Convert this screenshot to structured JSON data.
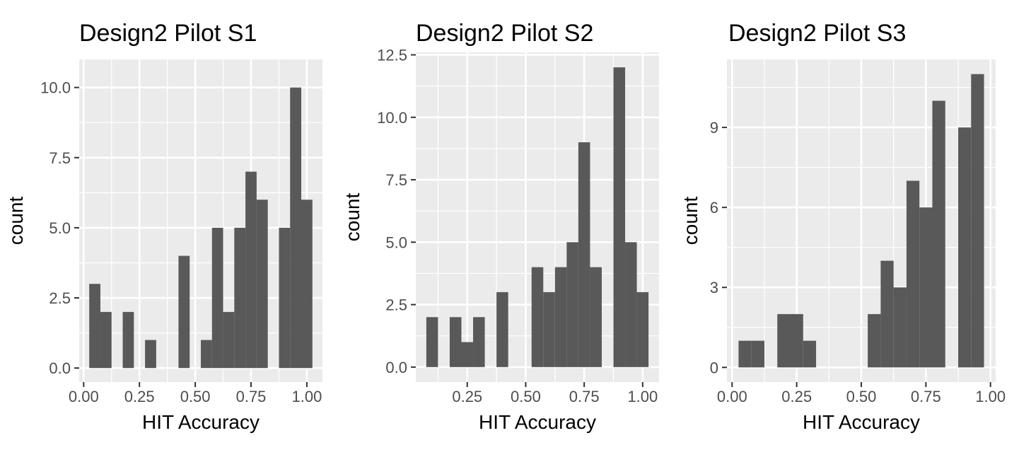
{
  "chart_data": [
    {
      "type": "bar",
      "title": "Design2 Pilot S1",
      "xlabel": "HIT Accuracy",
      "ylabel": "count",
      "xlim": [
        -0.02,
        1.07
      ],
      "ylim": [
        -0.5,
        11.0
      ],
      "xticks": [
        0.0,
        0.25,
        0.5,
        0.75,
        1.0
      ],
      "xtick_labels": [
        "0.00",
        "0.25",
        "0.50",
        "0.75",
        "1.00"
      ],
      "yticks": [
        0.0,
        2.5,
        5.0,
        7.5,
        10.0
      ],
      "ytick_labels": [
        "0.0",
        "2.5",
        "5.0",
        "7.5",
        "10.0"
      ],
      "bin_width": 0.05,
      "bins": [
        {
          "x": 0.05,
          "count": 3
        },
        {
          "x": 0.1,
          "count": 2
        },
        {
          "x": 0.2,
          "count": 2
        },
        {
          "x": 0.3,
          "count": 1
        },
        {
          "x": 0.45,
          "count": 4
        },
        {
          "x": 0.55,
          "count": 1
        },
        {
          "x": 0.6,
          "count": 5
        },
        {
          "x": 0.65,
          "count": 2
        },
        {
          "x": 0.7,
          "count": 5
        },
        {
          "x": 0.75,
          "count": 7
        },
        {
          "x": 0.8,
          "count": 6
        },
        {
          "x": 0.9,
          "count": 5
        },
        {
          "x": 0.95,
          "count": 10
        },
        {
          "x": 1.0,
          "count": 6
        }
      ],
      "grid": true
    },
    {
      "type": "bar",
      "title": "Design2 Pilot S2",
      "xlabel": "HIT Accuracy",
      "ylabel": "count",
      "xlim": [
        0.03,
        1.07
      ],
      "ylim": [
        -0.6,
        12.6
      ],
      "xticks": [
        0.25,
        0.5,
        0.75,
        1.0
      ],
      "xtick_labels": [
        "0.25",
        "0.50",
        "0.75",
        "1.00"
      ],
      "yticks": [
        0.0,
        2.5,
        5.0,
        7.5,
        10.0,
        12.5
      ],
      "ytick_labels": [
        "0.0",
        "2.5",
        "5.0",
        "7.5",
        "10.0",
        "12.5"
      ],
      "bin_width": 0.05,
      "bins": [
        {
          "x": 0.1,
          "count": 2
        },
        {
          "x": 0.2,
          "count": 2
        },
        {
          "x": 0.25,
          "count": 1
        },
        {
          "x": 0.3,
          "count": 2
        },
        {
          "x": 0.4,
          "count": 3
        },
        {
          "x": 0.55,
          "count": 4
        },
        {
          "x": 0.6,
          "count": 3
        },
        {
          "x": 0.65,
          "count": 4
        },
        {
          "x": 0.7,
          "count": 5
        },
        {
          "x": 0.75,
          "count": 9
        },
        {
          "x": 0.8,
          "count": 4
        },
        {
          "x": 0.9,
          "count": 12
        },
        {
          "x": 0.95,
          "count": 5
        },
        {
          "x": 1.0,
          "count": 3
        }
      ],
      "grid": true
    },
    {
      "type": "bar",
      "title": "Design2 Pilot S3",
      "xlabel": "HIT Accuracy",
      "ylabel": "count",
      "xlim": [
        -0.02,
        1.02
      ],
      "ylim": [
        -0.55,
        11.55
      ],
      "xticks": [
        0.0,
        0.25,
        0.5,
        0.75,
        1.0
      ],
      "xtick_labels": [
        "0.00",
        "0.25",
        "0.50",
        "0.75",
        "1.00"
      ],
      "yticks": [
        0,
        3,
        6,
        9
      ],
      "ytick_labels": [
        "0",
        "3",
        "6",
        "9"
      ],
      "bin_width": 0.05,
      "bins": [
        {
          "x": 0.05,
          "count": 1
        },
        {
          "x": 0.1,
          "count": 1
        },
        {
          "x": 0.2,
          "count": 2
        },
        {
          "x": 0.25,
          "count": 2
        },
        {
          "x": 0.3,
          "count": 1
        },
        {
          "x": 0.55,
          "count": 2
        },
        {
          "x": 0.6,
          "count": 4
        },
        {
          "x": 0.65,
          "count": 3
        },
        {
          "x": 0.7,
          "count": 7
        },
        {
          "x": 0.75,
          "count": 6
        },
        {
          "x": 0.8,
          "count": 10
        },
        {
          "x": 0.9,
          "count": 9
        },
        {
          "x": 0.95,
          "count": 11
        }
      ],
      "grid": true
    }
  ],
  "style": {
    "panel_background": "#ebebeb",
    "grid_color": "#ffffff",
    "bar_color": "#595959",
    "tick_color": "#333333",
    "tick_label_color": "#4d4d4d"
  }
}
